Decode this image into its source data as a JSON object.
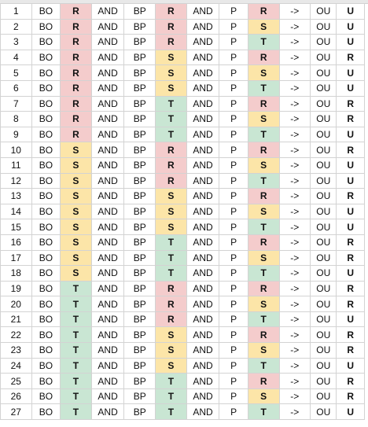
{
  "colors": {
    "R": "#f4cccc",
    "S": "#fce5a8",
    "T": "#c9e6d3"
  },
  "words": {
    "bo": "BO",
    "and": "AND",
    "bp": "BP",
    "p": "P",
    "arrow": "->",
    "ou": "OU"
  },
  "rows": [
    {
      "n": "1",
      "bo": "R",
      "bp": "R",
      "p": "R",
      "ou": "U"
    },
    {
      "n": "2",
      "bo": "R",
      "bp": "R",
      "p": "S",
      "ou": "U"
    },
    {
      "n": "3",
      "bo": "R",
      "bp": "R",
      "p": "T",
      "ou": "U"
    },
    {
      "n": "4",
      "bo": "R",
      "bp": "S",
      "p": "R",
      "ou": "R"
    },
    {
      "n": "5",
      "bo": "R",
      "bp": "S",
      "p": "S",
      "ou": "U"
    },
    {
      "n": "6",
      "bo": "R",
      "bp": "S",
      "p": "T",
      "ou": "U"
    },
    {
      "n": "7",
      "bo": "R",
      "bp": "T",
      "p": "R",
      "ou": "R"
    },
    {
      "n": "8",
      "bo": "R",
      "bp": "T",
      "p": "S",
      "ou": "R"
    },
    {
      "n": "9",
      "bo": "R",
      "bp": "T",
      "p": "T",
      "ou": "U"
    },
    {
      "n": "10",
      "bo": "S",
      "bp": "R",
      "p": "R",
      "ou": "R"
    },
    {
      "n": "11",
      "bo": "S",
      "bp": "R",
      "p": "S",
      "ou": "U"
    },
    {
      "n": "12",
      "bo": "S",
      "bp": "R",
      "p": "T",
      "ou": "U"
    },
    {
      "n": "13",
      "bo": "S",
      "bp": "S",
      "p": "R",
      "ou": "R"
    },
    {
      "n": "14",
      "bo": "S",
      "bp": "S",
      "p": "S",
      "ou": "U"
    },
    {
      "n": "15",
      "bo": "S",
      "bp": "S",
      "p": "T",
      "ou": "U"
    },
    {
      "n": "16",
      "bo": "S",
      "bp": "T",
      "p": "R",
      "ou": "R"
    },
    {
      "n": "17",
      "bo": "S",
      "bp": "T",
      "p": "S",
      "ou": "R"
    },
    {
      "n": "18",
      "bo": "S",
      "bp": "T",
      "p": "T",
      "ou": "U"
    },
    {
      "n": "19",
      "bo": "T",
      "bp": "R",
      "p": "R",
      "ou": "R"
    },
    {
      "n": "20",
      "bo": "T",
      "bp": "R",
      "p": "S",
      "ou": "R"
    },
    {
      "n": "21",
      "bo": "T",
      "bp": "R",
      "p": "T",
      "ou": "U"
    },
    {
      "n": "22",
      "bo": "T",
      "bp": "S",
      "p": "R",
      "ou": "R"
    },
    {
      "n": "23",
      "bo": "T",
      "bp": "S",
      "p": "S",
      "ou": "R"
    },
    {
      "n": "24",
      "bo": "T",
      "bp": "S",
      "p": "T",
      "ou": "U"
    },
    {
      "n": "25",
      "bo": "T",
      "bp": "T",
      "p": "R",
      "ou": "R"
    },
    {
      "n": "26",
      "bo": "T",
      "bp": "T",
      "p": "S",
      "ou": "R"
    },
    {
      "n": "27",
      "bo": "T",
      "bp": "T",
      "p": "T",
      "ou": "U"
    }
  ]
}
